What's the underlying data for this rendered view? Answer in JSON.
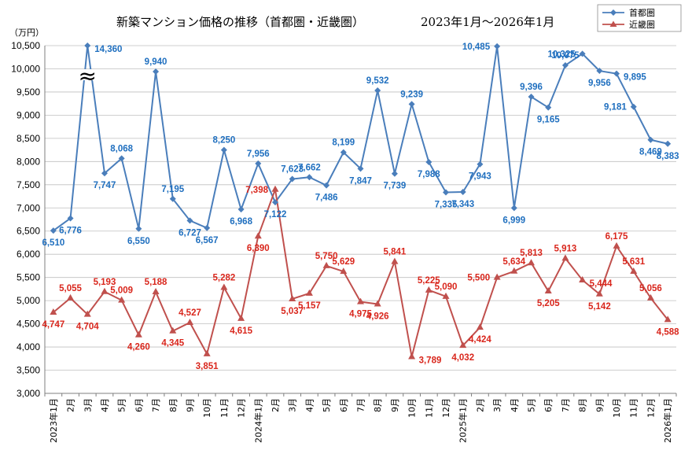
{
  "chart_data": {
    "type": "line",
    "title": "新築マンション価格の推移（首都圏・近畿圏）",
    "period": "2023年1月～2026年1月",
    "ylabel": "（万円）",
    "ylim": [
      3000,
      10500
    ],
    "ytick_step": 500,
    "ytick_labels": [
      "3,000",
      "3,500",
      "4,000",
      "4,500",
      "5,000",
      "5,500",
      "6,000",
      "6,500",
      "7,000",
      "7,500",
      "8,000",
      "8,500",
      "9,000",
      "9,500",
      "10,000",
      "10,500"
    ],
    "categories": [
      "2023年1月",
      "2月",
      "3月",
      "4月",
      "5月",
      "6月",
      "7月",
      "8月",
      "9月",
      "10月",
      "11月",
      "12月",
      "2024年1月",
      "2月",
      "3月",
      "4月",
      "5月",
      "6月",
      "7月",
      "8月",
      "9月",
      "10月",
      "11月",
      "12月",
      "2025年1月",
      "2月",
      "3月",
      "4月",
      "5月",
      "6月",
      "7月",
      "8月",
      "9月",
      "10月",
      "11月",
      "12月",
      "2026年1月"
    ],
    "axis_break": "≈",
    "series": [
      {
        "name": "首都圏",
        "color": "#4a7ebb",
        "label_color": "#1f6fbf",
        "marker": "diamond",
        "values": [
          6510,
          6776,
          14360,
          7747,
          8068,
          6550,
          9940,
          7195,
          6727,
          6567,
          8250,
          6968,
          7956,
          7122,
          7623,
          7662,
          7486,
          8199,
          7847,
          9532,
          7739,
          9239,
          7988,
          7335,
          7343,
          7943,
          10485,
          6999,
          9396,
          9165,
          10075,
          10325,
          9956,
          9895,
          9181,
          8469,
          8383
        ],
        "labels": [
          "6,510",
          "6,776",
          "14,360",
          "7,747",
          "8,068",
          "6,550",
          "9,940",
          "7,195",
          "6,727",
          "6,567",
          "8,250",
          "6,968",
          "7,956",
          "7,122",
          "7,623",
          "7,662",
          "7,486",
          "8,199",
          "7,847",
          "9,532",
          "7,739",
          "9,239",
          "7,988",
          "7,335",
          "7,343",
          "7,943",
          "10,485",
          "6,999",
          "9,396",
          "9,165",
          "10,075",
          "10,325",
          "9,956",
          "9,895",
          "9,181",
          "8,469",
          "8,383"
        ]
      },
      {
        "name": "近畿圏",
        "color": "#c0504d",
        "label_color": "#d9261c",
        "marker": "triangle",
        "values": [
          4747,
          5055,
          4704,
          5193,
          5009,
          4260,
          5188,
          4345,
          4527,
          3851,
          5282,
          4615,
          6390,
          7398,
          5037,
          5157,
          5750,
          5629,
          4975,
          4926,
          5841,
          3789,
          5225,
          5090,
          4032,
          4424,
          5500,
          5634,
          5813,
          5205,
          5913,
          5444,
          5142,
          6175,
          5631,
          5056,
          4588
        ],
        "labels": [
          "4,747",
          "5,055",
          "4,704",
          "5,193",
          "5,009",
          "4,260",
          "5,188",
          "4,345",
          "4,527",
          "3,851",
          "5,282",
          "4,615",
          "6,390",
          "7,398",
          "5,037",
          "5,157",
          "5,750",
          "5,629",
          "4,975",
          "4,926",
          "5,841",
          "3,789",
          "5,225",
          "5,090",
          "4,032",
          "4,424",
          "5,500",
          "5,634",
          "5,813",
          "5,205",
          "5,913",
          "5,444",
          "5,142",
          "6,175",
          "5,631",
          "5,056",
          "4,588"
        ]
      }
    ]
  }
}
